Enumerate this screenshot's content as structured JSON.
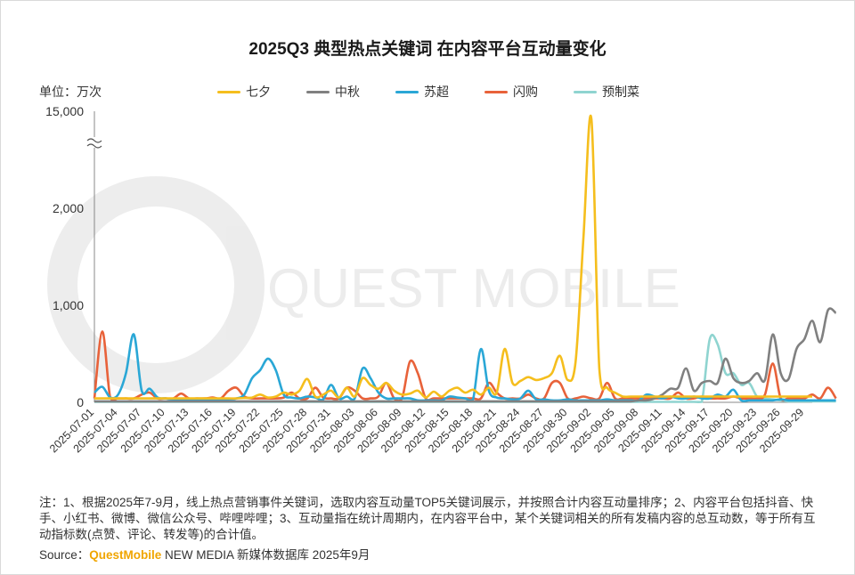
{
  "title": "2025Q3 典型热点关键词 在内容平台互动量变化",
  "unit_label": "单位：万次",
  "note": "注：1、根据2025年7-9月，线上热点营销事件关键词，选取内容互动量TOP5关键词展示，并按照合计内容互动量排序；2、内容平台包括抖音、快手、小红书、微博、微信公众号、哔哩哔哩；3、互动量指在统计周期内，在内容平台中，某个关键词相关的所有发稿内容的总互动数，等于所有互动指标数(点赞、评论、转发等)的合计值。",
  "source": {
    "prefix": "Source：",
    "brand": "QuestMobile",
    "rest": " NEW MEDIA 新媒体数据库 2025年9月"
  },
  "watermark": "QUEST MOBILE",
  "chart_data": {
    "type": "line",
    "title": "2025Q3 典型热点关键词 在内容平台互动量变化",
    "ylabel": "单位：万次",
    "xlabel": "",
    "y_scale": "broken",
    "y_break": "between 2,000 and 15,000",
    "ylim": [
      0,
      15000
    ],
    "y_ticks": [
      "0",
      "1,000",
      "2,000",
      "15,000"
    ],
    "x_tick_labels": [
      "2025-07-01",
      "2025-07-04",
      "2025-07-07",
      "2025-07-10",
      "2025-07-13",
      "2025-07-16",
      "2025-07-19",
      "2025-07-22",
      "2025-07-25",
      "2025-07-28",
      "2025-07-31",
      "2025-08-03",
      "2025-08-06",
      "2025-08-09",
      "2025-08-12",
      "2025-08-15",
      "2025-08-18",
      "2025-08-21",
      "2025-08-24",
      "2025-08-27",
      "2025-08-30",
      "2025-09-02",
      "2025-09-05",
      "2025-09-08",
      "2025-09-11",
      "2025-09-14",
      "2025-09-17",
      "2025-09-20",
      "2025-09-23",
      "2025-09-26",
      "2025-09-29"
    ],
    "grid": false,
    "legend_position": "top",
    "series": [
      {
        "name": "七夕",
        "color": "#f5be1d",
        "values": [
          40,
          40,
          40,
          40,
          40,
          40,
          40,
          40,
          40,
          40,
          40,
          40,
          40,
          40,
          40,
          40,
          40,
          40,
          40,
          45,
          50,
          80,
          50,
          60,
          100,
          80,
          120,
          240,
          60,
          80,
          120,
          50,
          150,
          60,
          250,
          180,
          140,
          200,
          120,
          80,
          90,
          120,
          50,
          110,
          60,
          120,
          150,
          100,
          130,
          80,
          150,
          100,
          550,
          200,
          220,
          260,
          230,
          250,
          300,
          480,
          230,
          420,
          1700,
          14000,
          350,
          150,
          100,
          60,
          60,
          60,
          60,
          60,
          60,
          60,
          60,
          60,
          60,
          60,
          60,
          60,
          60,
          60,
          60,
          60,
          60,
          60,
          60,
          60,
          60,
          60,
          60,
          60
        ]
      },
      {
        "name": "中秋",
        "color": "#808080",
        "values": [
          10,
          10,
          10,
          10,
          10,
          10,
          10,
          10,
          10,
          10,
          10,
          10,
          10,
          10,
          10,
          10,
          10,
          10,
          10,
          10,
          10,
          10,
          10,
          10,
          10,
          10,
          10,
          10,
          10,
          10,
          10,
          10,
          10,
          10,
          10,
          10,
          10,
          10,
          10,
          10,
          10,
          10,
          10,
          10,
          10,
          10,
          10,
          10,
          10,
          10,
          10,
          10,
          10,
          10,
          10,
          10,
          10,
          10,
          10,
          10,
          10,
          10,
          10,
          10,
          10,
          10,
          10,
          10,
          10,
          20,
          20,
          40,
          80,
          140,
          150,
          350,
          120,
          200,
          220,
          200,
          450,
          250,
          200,
          220,
          300,
          230,
          700,
          300,
          240,
          550,
          650,
          840,
          620,
          950,
          920
        ]
      },
      {
        "name": "苏超",
        "color": "#2aa7d6",
        "values": [
          100,
          160,
          50,
          80,
          300,
          700,
          120,
          140,
          50,
          40,
          30,
          30,
          20,
          20,
          20,
          20,
          20,
          30,
          40,
          80,
          250,
          330,
          450,
          330,
          80,
          50,
          40,
          60,
          50,
          30,
          180,
          40,
          60,
          40,
          350,
          250,
          100,
          40,
          40,
          40,
          40,
          20,
          20,
          20,
          20,
          60,
          50,
          40,
          30,
          550,
          120,
          50,
          40,
          30,
          40,
          120,
          30,
          30,
          20,
          20,
          30,
          20,
          20,
          20,
          20,
          30,
          20,
          20,
          20,
          20,
          80,
          60,
          40,
          60,
          40,
          40,
          60,
          40,
          40,
          80,
          60,
          130,
          20,
          20,
          20,
          20,
          20,
          30,
          20,
          20,
          20,
          20,
          20,
          20,
          20
        ]
      },
      {
        "name": "闪购",
        "color": "#e8623a",
        "values": [
          40,
          730,
          50,
          40,
          40,
          40,
          80,
          100,
          40,
          40,
          40,
          90,
          40,
          40,
          40,
          50,
          40,
          120,
          150,
          60,
          40,
          40,
          40,
          40,
          50,
          100,
          40,
          40,
          150,
          50,
          40,
          40,
          150,
          120,
          40,
          40,
          60,
          200,
          40,
          40,
          420,
          300,
          40,
          40,
          40,
          40,
          40,
          40,
          40,
          40,
          200,
          100,
          40,
          40,
          40,
          80,
          40,
          40,
          200,
          200,
          40,
          40,
          60,
          40,
          40,
          200,
          40,
          40,
          40,
          40,
          40,
          40,
          40,
          40,
          100,
          40,
          40,
          60,
          40,
          40,
          40,
          60,
          40,
          40,
          40,
          80,
          400,
          40,
          40,
          40,
          40,
          80,
          40,
          150,
          40
        ]
      },
      {
        "name": "预制菜",
        "color": "#8fd4d0",
        "values": [
          5,
          5,
          5,
          5,
          5,
          5,
          5,
          5,
          5,
          5,
          5,
          5,
          5,
          5,
          5,
          5,
          5,
          5,
          5,
          5,
          5,
          5,
          5,
          5,
          5,
          5,
          5,
          5,
          5,
          5,
          5,
          5,
          5,
          5,
          5,
          5,
          5,
          5,
          5,
          5,
          5,
          5,
          5,
          5,
          5,
          5,
          5,
          5,
          5,
          5,
          5,
          5,
          5,
          5,
          5,
          5,
          5,
          5,
          5,
          5,
          5,
          5,
          5,
          5,
          5,
          5,
          5,
          5,
          5,
          5,
          5,
          5,
          5,
          5,
          5,
          5,
          5,
          5,
          650,
          600,
          300,
          300,
          180,
          200,
          60,
          40,
          30,
          20,
          10,
          10,
          10,
          10,
          10,
          10,
          10
        ]
      }
    ]
  }
}
